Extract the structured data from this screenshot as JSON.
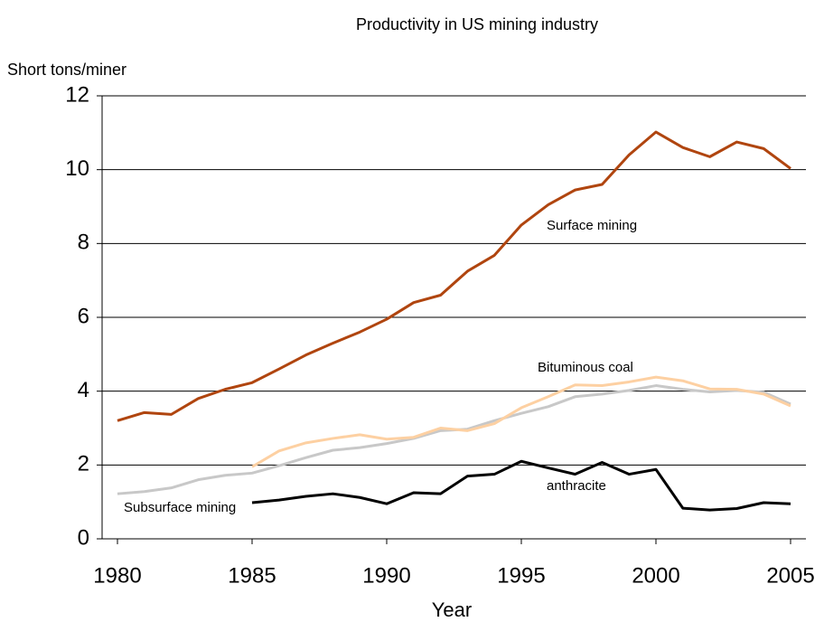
{
  "chart_data": {
    "type": "line",
    "title": "Productivity in US mining industry",
    "y_label": "Short tons/miner",
    "x_label": "Year",
    "x": [
      1980,
      1981,
      1982,
      1983,
      1984,
      1985,
      1986,
      1987,
      1988,
      1989,
      1990,
      1991,
      1992,
      1993,
      1994,
      1995,
      1996,
      1997,
      1998,
      1999,
      2000,
      2001,
      2002,
      2003,
      2004,
      2005
    ],
    "series": [
      {
        "name": "Surface mining",
        "color": "#b0450f",
        "values": [
          3.2,
          3.42,
          3.37,
          3.8,
          4.05,
          4.23,
          4.6,
          4.98,
          5.3,
          5.6,
          5.95,
          6.4,
          6.6,
          7.25,
          7.68,
          8.5,
          9.05,
          9.45,
          9.6,
          10.4,
          11.02,
          10.6,
          10.35,
          10.75,
          10.57,
          10.03
        ]
      },
      {
        "name": "Subsurface mining",
        "color": "#c8c8c8",
        "values": [
          1.22,
          1.28,
          1.38,
          1.6,
          1.72,
          1.78,
          1.98,
          2.2,
          2.4,
          2.47,
          2.58,
          2.72,
          2.93,
          2.97,
          3.2,
          3.4,
          3.58,
          3.85,
          3.92,
          4.02,
          4.15,
          4.05,
          3.98,
          4.02,
          3.97,
          3.65
        ]
      },
      {
        "name": "Bituminous coal",
        "color": "#fdd0a2",
        "values": [
          null,
          null,
          null,
          null,
          null,
          1.95,
          2.38,
          2.6,
          2.72,
          2.82,
          2.7,
          2.75,
          3.0,
          2.93,
          3.12,
          3.55,
          3.85,
          4.17,
          4.15,
          4.25,
          4.38,
          4.28,
          4.06,
          4.05,
          3.92,
          3.6
        ]
      },
      {
        "name": "anthracite",
        "color": "#000000",
        "values": [
          null,
          null,
          null,
          null,
          null,
          0.98,
          1.05,
          1.15,
          1.22,
          1.12,
          0.95,
          1.25,
          1.22,
          1.7,
          1.75,
          2.1,
          1.92,
          1.75,
          2.07,
          1.75,
          1.88,
          0.83,
          0.78,
          0.82,
          0.98,
          0.95
        ]
      }
    ],
    "xlim": [
      1979.43,
      2005.57
    ],
    "xticks": [
      1980,
      1985,
      1990,
      1995,
      2000,
      2005
    ],
    "ylim": [
      0,
      12
    ],
    "yticks": [
      0,
      2,
      4,
      6,
      8,
      10,
      12
    ],
    "grid": true
  }
}
